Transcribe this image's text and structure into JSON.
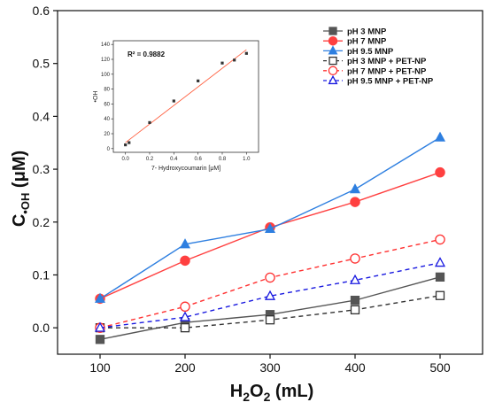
{
  "chart_data": [
    {
      "type": "line",
      "title": "",
      "xlabel": "H₂O₂ (mL)",
      "ylabel": "C·OH (μM)",
      "x": [
        100,
        200,
        300,
        400,
        500
      ],
      "xlim": [
        50,
        550
      ],
      "ylim": [
        -0.05,
        0.6
      ],
      "xticks": [
        "100",
        "200",
        "300",
        "400",
        "500"
      ],
      "yticks": [
        "0.0",
        "0.1",
        "0.2",
        "0.3",
        "0.4",
        "0.5",
        "0.6"
      ],
      "legend_position": "top-right",
      "series": [
        {
          "name": "pH 3 MNP",
          "values": [
            -0.022,
            0.01,
            0.025,
            0.052,
            0.096
          ],
          "color": "#555555",
          "marker": "square",
          "filled": true,
          "dash": false
        },
        {
          "name": "pH 7 MNP",
          "values": [
            0.055,
            0.127,
            0.19,
            0.238,
            0.294
          ],
          "color": "#ff4040",
          "marker": "circle",
          "filled": true,
          "dash": false
        },
        {
          "name": "pH 9.5 MNP",
          "values": [
            0.055,
            0.158,
            0.187,
            0.262,
            0.36
          ],
          "color": "#2e7fe0",
          "marker": "triangle",
          "filled": true,
          "dash": false
        },
        {
          "name": "pH 3 MNP + PET-NP",
          "values": [
            0.0,
            0.0,
            0.015,
            0.034,
            0.061
          ],
          "color": "#333333",
          "marker": "square",
          "filled": false,
          "dash": true
        },
        {
          "name": "pH 7 MNP + PET-NP",
          "values": [
            0.0,
            0.04,
            0.095,
            0.131,
            0.167
          ],
          "color": "#ff3030",
          "marker": "circle",
          "filled": false,
          "dash": true
        },
        {
          "name": "pH 9.5 MNP + PET-NP",
          "values": [
            0.0,
            0.02,
            0.06,
            0.09,
            0.123
          ],
          "color": "#1a1ae0",
          "marker": "triangle",
          "filled": false,
          "dash": true
        }
      ]
    },
    {
      "type": "scatter",
      "title": "",
      "xlabel": "7- Hydroxycoumarin [μM]",
      "ylabel": "•OH",
      "annotation": "R² = 0.9882",
      "x": [
        0.0,
        0.03,
        0.2,
        0.4,
        0.6,
        0.8,
        0.9,
        1.0
      ],
      "y": [
        5,
        8,
        35,
        64,
        91,
        115,
        119,
        128
      ],
      "fit": {
        "x": [
          0.0,
          1.0
        ],
        "y": [
          8,
          133
        ],
        "color": "#ff6040"
      },
      "xlim": [
        -0.1,
        1.1
      ],
      "ylim": [
        -5,
        145
      ],
      "xticks": [
        "0.0",
        "0.2",
        "0.4",
        "0.6",
        "0.8",
        "1.0"
      ],
      "yticks": [
        "0",
        "20",
        "40",
        "60",
        "80",
        "100",
        "120",
        "140"
      ]
    }
  ]
}
